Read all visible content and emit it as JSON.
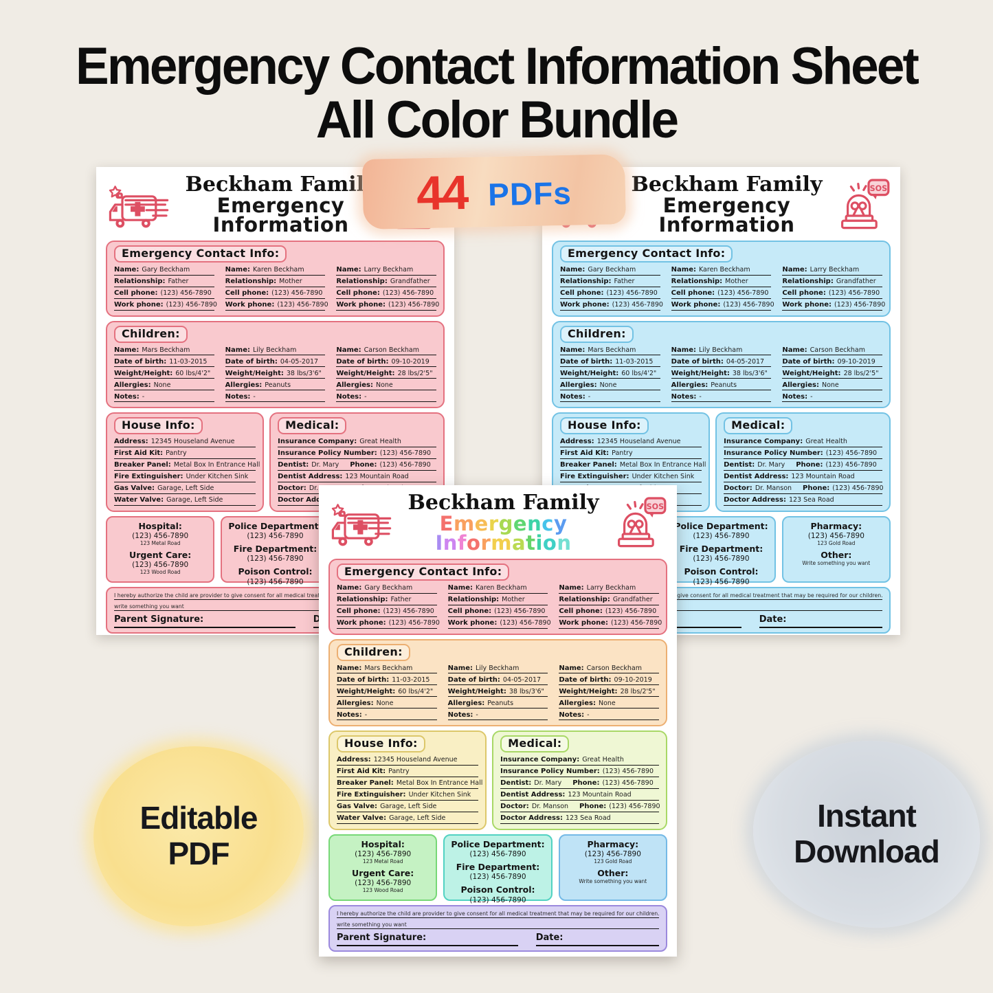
{
  "page": {
    "background": "#f0ece5",
    "title": {
      "line1": "Emergency Contact Information Sheet",
      "line2": "All Color Bundle",
      "color": "#0d0d0d"
    },
    "pdf_badge": {
      "count": "44",
      "label": "PDFs",
      "count_color": "#e8342b",
      "label_color": "#1b74e8"
    },
    "editable_badge": {
      "line1": "Editable",
      "line2": "PDF"
    },
    "instant_badge": {
      "line1": "Instant",
      "line2": "Download"
    }
  },
  "sheet": {
    "family_title": "Beckham Family",
    "subtitle_line1": "Emergency",
    "subtitle_line2": "Information",
    "icons": {
      "ambulance": "ambulance-icon",
      "siren": "sos-siren-icon",
      "sos_label": "SOS"
    },
    "sections": {
      "contacts": {
        "heading": "Emergency Contact Info:",
        "columns": [
          {
            "fields": [
              {
                "label": "Name:",
                "value": "Gary Beckham"
              },
              {
                "label": "Relationship:",
                "value": "Father"
              },
              {
                "label": "Cell phone:",
                "value": "(123) 456-7890"
              },
              {
                "label": "Work phone:",
                "value": "(123) 456-7890"
              }
            ]
          },
          {
            "fields": [
              {
                "label": "Name:",
                "value": "Karen Beckham"
              },
              {
                "label": "Relationship:",
                "value": "Mother"
              },
              {
                "label": "Cell phone:",
                "value": "(123) 456-7890"
              },
              {
                "label": "Work phone:",
                "value": "(123) 456-7890"
              }
            ]
          },
          {
            "fields": [
              {
                "label": "Name:",
                "value": "Larry Beckham"
              },
              {
                "label": "Relationship:",
                "value": "Grandfather"
              },
              {
                "label": "Cell phone:",
                "value": "(123) 456-7890"
              },
              {
                "label": "Work phone:",
                "value": "(123) 456-7890"
              }
            ]
          }
        ]
      },
      "children": {
        "heading": "Children:",
        "columns": [
          {
            "fields": [
              {
                "label": "Name:",
                "value": "Mars Beckham"
              },
              {
                "label": "Date of birth:",
                "value": "11-03-2015"
              },
              {
                "label": "Weight/Height:",
                "value": "60 lbs/4'2\""
              },
              {
                "label": "Allergies:",
                "value": "None"
              },
              {
                "label": "Notes:",
                "value": "-"
              }
            ]
          },
          {
            "fields": [
              {
                "label": "Name:",
                "value": "Lily Beckham"
              },
              {
                "label": "Date of birth:",
                "value": "04-05-2017"
              },
              {
                "label": "Weight/Height:",
                "value": "38 lbs/3'6\""
              },
              {
                "label": "Allergies:",
                "value": "Peanuts"
              },
              {
                "label": "Notes:",
                "value": "-"
              }
            ]
          },
          {
            "fields": [
              {
                "label": "Name:",
                "value": "Carson Beckham"
              },
              {
                "label": "Date of birth:",
                "value": "09-10-2019"
              },
              {
                "label": "Weight/Height:",
                "value": "28 lbs/2'5\""
              },
              {
                "label": "Allergies:",
                "value": "None"
              },
              {
                "label": "Notes:",
                "value": "-"
              }
            ]
          }
        ]
      },
      "house": {
        "heading": "House Info:",
        "fields": [
          {
            "label": "Address:",
            "value": "12345 Houseland Avenue"
          },
          {
            "label": "First Aid Kit:",
            "value": "Pantry"
          },
          {
            "label": "Breaker Panel:",
            "value": "Metal Box In Entrance Hall"
          },
          {
            "label": "Fire Extinguisher:",
            "value": "Under Kitchen Sink"
          },
          {
            "label": "Gas Valve:",
            "value": "Garage, Left Side"
          },
          {
            "label": "Water Valve:",
            "value": "Garage, Left Side"
          }
        ]
      },
      "medical": {
        "heading": "Medical:",
        "fields": [
          {
            "label": "Insurance Company:",
            "value": "Great Health"
          },
          {
            "label": "Insurance Policy Number:",
            "value": "(123) 456-7890"
          },
          {
            "label": "Dentist:",
            "value": "Dr. Mary",
            "label2": "Phone:",
            "value2": "(123) 456-7890"
          },
          {
            "label": "Dentist Address:",
            "value": "123 Mountain Road"
          },
          {
            "label": "Doctor:",
            "value": "Dr. Manson",
            "label2": "Phone:",
            "value2": "(123) 456-7890"
          },
          {
            "label": "Doctor Address:",
            "value": "123 Sea Road"
          }
        ]
      },
      "hospital": {
        "lines": [
          {
            "t": "h",
            "text": "Hospital:"
          },
          {
            "t": "p",
            "text": "(123) 456-7890"
          },
          {
            "t": "a",
            "text": "123 Metal Road"
          },
          {
            "t": "h",
            "text": "Urgent Care:"
          },
          {
            "t": "p",
            "text": "(123) 456-7890"
          },
          {
            "t": "a",
            "text": "123 Wood Road"
          }
        ]
      },
      "services": {
        "lines": [
          {
            "t": "h",
            "text": "Police Department:"
          },
          {
            "t": "p",
            "text": "(123) 456-7890"
          },
          {
            "t": "h",
            "text": "Fire Department:"
          },
          {
            "t": "p",
            "text": "(123) 456-7890"
          },
          {
            "t": "h",
            "text": "Poison Control:"
          },
          {
            "t": "p",
            "text": "(123) 456-7890"
          }
        ]
      },
      "pharmacy": {
        "lines": [
          {
            "t": "h",
            "text": "Pharmacy:"
          },
          {
            "t": "p",
            "text": "(123) 456-7890"
          },
          {
            "t": "a",
            "text": "123 Gold Road"
          },
          {
            "t": "h",
            "text": "Other:"
          },
          {
            "t": "a",
            "text": "Write something you want"
          }
        ]
      },
      "authorization": {
        "line1": "I hereby authorize the child are provider to give consent for all medical treatment that may be required for our children.",
        "line2": "write something you want",
        "signature_label": "Parent Signature:",
        "date_label": "Date:"
      }
    }
  },
  "themes": [
    {
      "name": "pink",
      "rainbow_subtitle": false,
      "sections": {
        "contacts": [
          "#f9c9ce",
          "#e4717f"
        ],
        "children": [
          "#f9c9ce",
          "#e4717f"
        ],
        "house": [
          "#f9c9ce",
          "#e4717f"
        ],
        "medical": [
          "#f9c9ce",
          "#e4717f"
        ],
        "hospital": [
          "#f9c9ce",
          "#e4717f"
        ],
        "services": [
          "#f9c9ce",
          "#e4717f"
        ],
        "pharmacy": [
          "#f9c9ce",
          "#e4717f"
        ],
        "authorization": [
          "#f9c9ce",
          "#e4717f"
        ]
      }
    },
    {
      "name": "blue",
      "rainbow_subtitle": false,
      "sections": {
        "contacts": [
          "#c6eaf8",
          "#72c2e4"
        ],
        "children": [
          "#c6eaf8",
          "#72c2e4"
        ],
        "house": [
          "#c6eaf8",
          "#72c2e4"
        ],
        "medical": [
          "#c6eaf8",
          "#72c2e4"
        ],
        "hospital": [
          "#c6eaf8",
          "#72c2e4"
        ],
        "services": [
          "#c6eaf8",
          "#72c2e4"
        ],
        "pharmacy": [
          "#c6eaf8",
          "#72c2e4"
        ],
        "authorization": [
          "#c6eaf8",
          "#72c2e4"
        ]
      }
    },
    {
      "name": "rainbow",
      "rainbow_subtitle": true,
      "sections": {
        "contacts": [
          "#f9c9ce",
          "#e4717f"
        ],
        "children": [
          "#fbe3c4",
          "#ecaf72"
        ],
        "house": [
          "#f9efc4",
          "#dcc76a"
        ],
        "medical": [
          "#eff7d4",
          "#a8d866"
        ],
        "hospital": [
          "#c5f2c3",
          "#77d877"
        ],
        "services": [
          "#bdf2e6",
          "#52d2c2"
        ],
        "pharmacy": [
          "#bfe3f6",
          "#74b9e6"
        ],
        "authorization": [
          "#d9d2f4",
          "#9b89dd"
        ]
      }
    }
  ],
  "rainbow": {
    "line1": [
      "#f4716d",
      "#f9a05e",
      "#f7bd55",
      "#e9d44b",
      "#a8d952",
      "#5fd672",
      "#3ed3a7",
      "#47c3ea",
      "#5b9cf0"
    ],
    "line2": [
      "#a98cf2",
      "#cd85f0",
      "#ef83d3",
      "#f4716d",
      "#f9a05e",
      "#f2cf4d",
      "#bada52",
      "#66d36a",
      "#3ed3a7",
      "#3fd0c5",
      "#74dfd2"
    ]
  },
  "icon_color": "#dd4f63"
}
